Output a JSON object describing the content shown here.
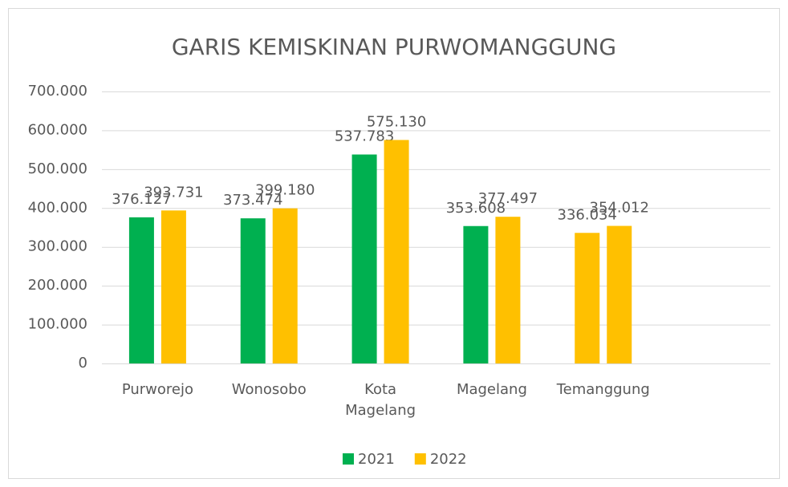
{
  "chart_data": {
    "type": "bar",
    "title": "GARIS KEMISKINAN PURWOMANGGUNG",
    "categories": [
      "Purworejo",
      "Wonosobo",
      "Kota Magelang",
      "Magelang",
      "Temanggung",
      null
    ],
    "series": [
      {
        "name": "2021",
        "color": "#00b050",
        "colors": [
          "#00b050",
          "#00b050",
          "#00b050",
          "#00b050",
          "#ffc000",
          null
        ],
        "values": [
          376127,
          373474,
          537783,
          353608,
          336034,
          null
        ],
        "value_labels": [
          "376.127",
          "373.474",
          "537.783",
          "353.608",
          "336.034",
          null
        ]
      },
      {
        "name": "2022",
        "color": "#ffc000",
        "values": [
          393731,
          399180,
          575130,
          377497,
          354012,
          null
        ],
        "value_labels": [
          "393.731",
          "399.180",
          "575.130",
          "377.497",
          "354.012",
          null
        ]
      }
    ],
    "ylim": [
      0,
      700000
    ],
    "yticks": [
      0,
      {
        "value": 100000,
        "label": "100.000"
      },
      {
        "value": 200000,
        "label": "200.000"
      },
      {
        "value": 300000,
        "label": "300.000"
      },
      {
        "value": 400000,
        "label": "400.000"
      },
      {
        "value": 500000,
        "label": "500.000"
      },
      {
        "value": 600000,
        "label": "600.000"
      },
      {
        "value": 700000,
        "label": "700.000"
      }
    ],
    "grid": true,
    "legend": "bottom"
  }
}
